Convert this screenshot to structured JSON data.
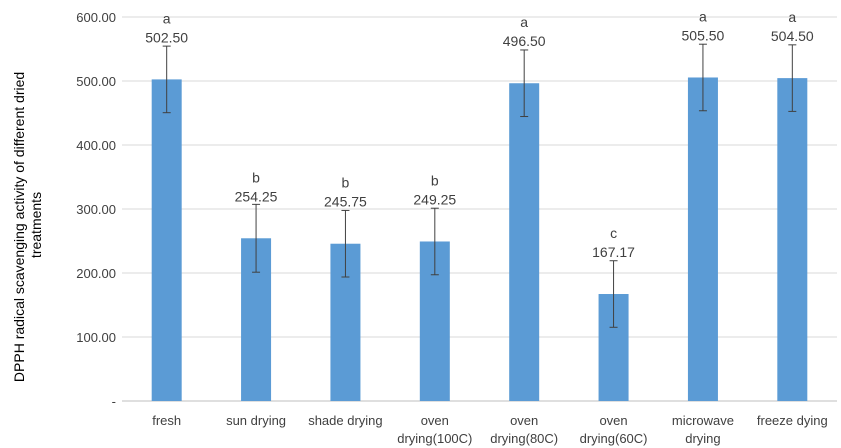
{
  "chart_data": {
    "type": "bar",
    "title": "",
    "xlabel": "",
    "ylabel_lines": [
      "DPPH radical scavenging activity of different dried",
      "treatments"
    ],
    "ylim": [
      0,
      600
    ],
    "yticks": [
      0,
      100,
      200,
      300,
      400,
      500,
      600
    ],
    "ytick_labels": [
      "-",
      "100.00",
      "200.00",
      "300.00",
      "400.00",
      "500.00",
      "600.00"
    ],
    "grid": true,
    "legend": "none",
    "categories": [
      [
        "fresh"
      ],
      [
        "sun drying"
      ],
      [
        "shade drying"
      ],
      [
        "oven",
        "drying(100C)"
      ],
      [
        "oven",
        "drying(80C)"
      ],
      [
        "oven",
        "drying(60C)"
      ],
      [
        "microwave",
        "drying"
      ],
      [
        "freeze dying"
      ]
    ],
    "values": [
      502.5,
      254.25,
      245.75,
      249.25,
      496.5,
      167.17,
      505.5,
      504.5
    ],
    "value_labels": [
      "502.50",
      "254.25",
      "245.75",
      "249.25",
      "496.50",
      "167.17",
      "505.50",
      "504.50"
    ],
    "significance_letters": [
      "a",
      "b",
      "b",
      "b",
      "a",
      "c",
      "a",
      "a"
    ],
    "error": [
      52,
      53,
      52,
      52,
      52,
      52,
      52,
      52
    ],
    "colors": {
      "bar": "#5b9bd5",
      "grid": "#d9d9d9",
      "axis": "#bfbfbf",
      "error_bar": "#404040"
    }
  }
}
